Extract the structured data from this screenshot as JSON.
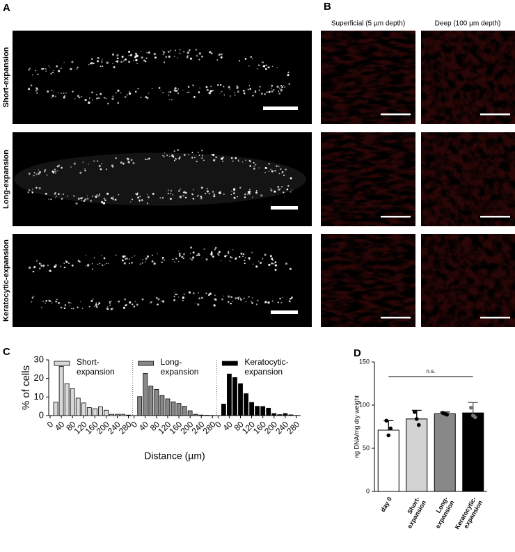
{
  "panel_labels": [
    "A",
    "B",
    "C",
    "D"
  ],
  "panel_a": {
    "row_labels": [
      "Short-expansion",
      "Long-expansion",
      "Keratocytic-expansion"
    ]
  },
  "panel_b": {
    "column_labels": [
      "Superficial (5 µm depth)",
      "Deep (100 µm depth)"
    ]
  },
  "chart_data": [
    {
      "type": "bar",
      "ylabel": "% of cells",
      "xlabel": "Distance (µm)",
      "x": [
        20,
        40,
        60,
        80,
        100,
        120,
        140,
        160,
        180,
        200,
        220,
        240,
        260,
        280
      ],
      "xlim": [
        -5,
        295
      ],
      "xticks": [
        0,
        40,
        80,
        120,
        160,
        200,
        240,
        280
      ],
      "ylim": [
        0,
        30
      ],
      "yticks": [
        0,
        10,
        20,
        30
      ],
      "series": [
        {
          "name": "Short-\nexpansion",
          "color": "#d9d9d9",
          "values": [
            7.2,
            26.5,
            17.2,
            14.5,
            9.4,
            6.8,
            4.3,
            3.7,
            4.7,
            2.9,
            0.7,
            0.7,
            0.7,
            0.3
          ]
        },
        {
          "name": "Long-\nexpansion",
          "color": "#888888",
          "values": [
            10.2,
            22.7,
            15.9,
            14.1,
            10.8,
            9.0,
            7.4,
            6.5,
            5.0,
            2.6,
            0.7,
            0.3,
            0.2,
            0.1
          ]
        },
        {
          "name": "Keratocytic-\nexpansion",
          "color": "#000000",
          "values": [
            6.2,
            22.4,
            20.5,
            17.2,
            11.8,
            7.1,
            5.0,
            4.9,
            4.0,
            1.1,
            0.5,
            1.1,
            0.4,
            0.1
          ]
        }
      ]
    },
    {
      "type": "bar",
      "ylabel": "ng DNA/mg dry weight",
      "categories": [
        "day 0",
        "Short-\nexpansion",
        "Long-\nexpansion",
        "Keratocytic-\nexpansion"
      ],
      "values": [
        71,
        84,
        90,
        91
      ],
      "errors": [
        11,
        10,
        2,
        12
      ],
      "colors": [
        "#ffffff",
        "#d3d3d3",
        "#888888",
        "#000000"
      ],
      "points": [
        [
          82,
          65,
          73
        ],
        [
          92,
          84,
          77
        ],
        [
          91,
          90,
          89
        ],
        [
          97,
          88,
          86
        ]
      ],
      "annotation": "n.s.",
      "ylim": [
        0,
        150
      ],
      "yticks": [
        0,
        50,
        100,
        150
      ]
    }
  ]
}
